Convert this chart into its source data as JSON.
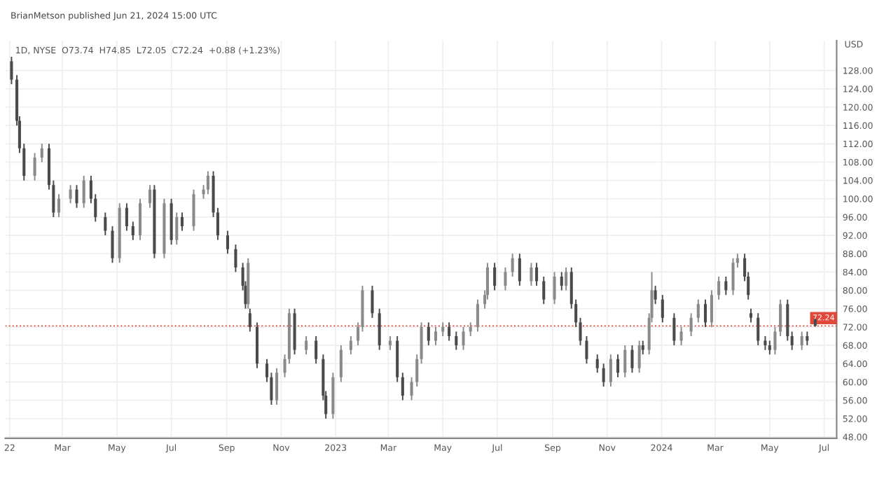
{
  "chart_data": {
    "type": "candlestick",
    "title": "BrianMetson published Jun 21, 2024 15:00 UTC",
    "subtitle": "1D, NYSE  O73.74  H74.85  L72.05  C72.24  +0.88 (+1.23%)",
    "ylabel": "USD",
    "x": [
      "2022-01-03",
      "2022-01-09",
      "2022-01-12",
      "2022-01-17",
      "2022-01-29",
      "2022-02-06",
      "2022-02-14",
      "2022-02-19",
      "2022-02-25",
      "2022-03-10",
      "2022-03-17",
      "2022-03-25",
      "2022-04-02",
      "2022-04-07",
      "2022-04-18",
      "2022-04-26",
      "2022-05-04",
      "2022-05-12",
      "2022-05-19",
      "2022-05-27",
      "2022-06-07",
      "2022-06-12",
      "2022-06-23",
      "2022-07-01",
      "2022-07-07",
      "2022-07-13",
      "2022-07-26",
      "2022-08-06",
      "2022-08-11",
      "2022-08-17",
      "2022-08-22",
      "2022-09-02",
      "2022-09-11",
      "2022-09-19",
      "2022-09-22",
      "2022-09-25",
      "2022-09-27",
      "2022-10-05",
      "2022-10-16",
      "2022-10-21",
      "2022-10-27",
      "2022-11-05",
      "2022-11-10",
      "2022-11-16",
      "2022-11-29",
      "2022-12-10",
      "2022-12-18",
      "2022-12-21",
      "2022-12-29",
      "2023-01-07",
      "2023-01-18",
      "2023-01-26",
      "2023-01-31",
      "2023-02-11",
      "2023-02-19",
      "2023-03-03",
      "2023-03-11",
      "2023-03-17",
      "2023-03-27",
      "2023-04-02",
      "2023-04-07",
      "2023-04-15",
      "2023-04-23",
      "2023-05-01",
      "2023-05-08",
      "2023-05-16",
      "2023-05-24",
      "2023-06-01",
      "2023-06-09",
      "2023-06-17",
      "2023-06-20",
      "2023-06-28",
      "2023-07-10",
      "2023-07-18",
      "2023-07-26",
      "2023-08-08",
      "2023-08-14",
      "2023-08-22",
      "2023-09-03",
      "2023-09-11",
      "2023-09-16",
      "2023-09-22",
      "2023-09-27",
      "2023-10-02",
      "2023-10-09",
      "2023-10-21",
      "2023-10-28",
      "2023-11-05",
      "2023-11-13",
      "2023-11-21",
      "2023-11-29",
      "2023-12-07",
      "2023-12-11",
      "2023-12-18",
      "2023-12-21",
      "2023-12-25",
      "2024-01-02",
      "2024-01-15",
      "2024-01-23",
      "2024-02-03",
      "2024-02-11",
      "2024-02-19",
      "2024-02-26",
      "2024-03-05",
      "2024-03-13",
      "2024-03-21",
      "2024-03-26",
      "2024-04-03",
      "2024-04-07",
      "2024-04-10",
      "2024-04-18",
      "2024-04-26",
      "2024-05-01",
      "2024-05-07",
      "2024-05-13",
      "2024-05-21",
      "2024-05-26",
      "2024-06-06",
      "2024-06-12",
      "2024-06-21"
    ],
    "ohlc": [
      [
        130,
        131,
        125,
        126
      ],
      [
        126,
        127,
        116,
        117
      ],
      [
        117,
        118,
        110,
        111
      ],
      [
        111,
        112,
        104,
        105
      ],
      [
        105,
        110,
        104,
        109
      ],
      [
        109,
        112,
        108,
        111
      ],
      [
        111,
        112,
        102,
        103
      ],
      [
        103,
        104,
        96,
        97
      ],
      [
        97,
        101,
        96,
        100
      ],
      [
        100,
        103,
        99,
        102
      ],
      [
        102,
        103,
        98,
        99
      ],
      [
        99,
        105,
        98,
        104
      ],
      [
        104,
        105,
        99,
        100
      ],
      [
        100,
        101,
        95,
        96
      ],
      [
        96,
        97,
        92,
        93
      ],
      [
        93,
        94,
        86,
        87
      ],
      [
        87,
        99,
        86,
        98
      ],
      [
        98,
        99,
        93,
        94
      ],
      [
        94,
        95,
        91,
        92
      ],
      [
        92,
        100,
        91,
        99
      ],
      [
        99,
        103,
        98,
        102
      ],
      [
        102,
        103,
        87,
        88
      ],
      [
        88,
        100,
        87,
        99
      ],
      [
        99,
        100,
        90,
        91
      ],
      [
        91,
        97,
        90,
        96
      ],
      [
        96,
        97,
        93,
        94
      ],
      [
        94,
        102,
        93,
        101
      ],
      [
        101,
        103,
        100,
        102
      ],
      [
        102,
        106,
        101,
        105
      ],
      [
        105,
        106,
        96,
        97
      ],
      [
        97,
        98,
        91,
        92
      ],
      [
        92,
        93,
        88,
        89
      ],
      [
        89,
        90,
        84,
        85
      ],
      [
        85,
        86,
        80,
        81
      ],
      [
        81,
        82,
        76,
        77
      ],
      [
        77,
        87,
        76,
        86
      ],
      [
        75,
        76,
        71,
        72
      ],
      [
        72,
        73,
        63,
        64
      ],
      [
        64,
        65,
        60,
        61
      ],
      [
        61,
        62,
        55,
        56
      ],
      [
        56,
        63,
        55,
        62
      ],
      [
        62,
        66,
        61,
        65
      ],
      [
        65,
        76,
        64,
        75
      ],
      [
        75,
        76,
        66,
        67
      ],
      [
        67,
        70,
        66,
        69
      ],
      [
        69,
        70,
        64,
        65
      ],
      [
        65,
        66,
        56,
        57
      ],
      [
        57,
        58,
        52,
        53
      ],
      [
        53,
        62,
        52,
        61
      ],
      [
        61,
        68,
        60,
        67
      ],
      [
        67,
        70,
        66,
        69
      ],
      [
        69,
        73,
        68,
        72
      ],
      [
        72,
        81,
        71,
        80
      ],
      [
        80,
        81,
        74,
        75
      ],
      [
        75,
        76,
        67,
        68
      ],
      [
        68,
        70,
        67,
        69
      ],
      [
        69,
        70,
        60,
        61
      ],
      [
        61,
        62,
        56,
        57
      ],
      [
        57,
        61,
        56,
        60
      ],
      [
        60,
        66,
        59,
        65
      ],
      [
        65,
        73,
        64,
        72
      ],
      [
        72,
        73,
        68,
        69
      ],
      [
        69,
        72,
        68,
        71
      ],
      [
        71,
        73,
        70,
        72
      ],
      [
        72,
        73,
        69,
        70
      ],
      [
        70,
        71,
        67,
        68
      ],
      [
        68,
        72,
        67,
        71
      ],
      [
        71,
        73,
        70,
        72
      ],
      [
        72,
        78,
        71,
        77
      ],
      [
        77,
        80,
        76,
        79
      ],
      [
        79,
        86,
        78,
        85
      ],
      [
        85,
        86,
        80,
        81
      ],
      [
        81,
        85,
        80,
        84
      ],
      [
        84,
        88,
        83,
        87
      ],
      [
        87,
        88,
        81,
        82
      ],
      [
        82,
        86,
        81,
        85
      ],
      [
        85,
        86,
        81,
        82
      ],
      [
        82,
        83,
        77,
        78
      ],
      [
        78,
        84,
        77,
        83
      ],
      [
        83,
        84,
        80,
        81
      ],
      [
        81,
        85,
        80,
        84
      ],
      [
        84,
        85,
        76,
        77
      ],
      [
        77,
        78,
        72,
        73
      ],
      [
        73,
        74,
        68,
        69
      ],
      [
        69,
        70,
        64,
        65
      ],
      [
        65,
        66,
        62,
        63
      ],
      [
        63,
        64,
        59,
        60
      ],
      [
        60,
        66,
        59,
        65
      ],
      [
        65,
        66,
        61,
        62
      ],
      [
        62,
        68,
        61,
        67
      ],
      [
        67,
        68,
        62,
        63
      ],
      [
        63,
        69,
        62,
        68
      ],
      [
        68,
        69,
        66,
        67
      ],
      [
        67,
        75,
        66,
        74
      ],
      [
        74,
        84,
        73,
        80
      ],
      [
        80,
        81,
        77,
        78
      ],
      [
        78,
        79,
        73,
        74
      ],
      [
        74,
        75,
        68,
        69
      ],
      [
        69,
        72,
        68,
        71
      ],
      [
        71,
        75,
        70,
        74
      ],
      [
        74,
        78,
        73,
        77
      ],
      [
        77,
        78,
        72,
        73
      ],
      [
        73,
        80,
        72,
        79
      ],
      [
        79,
        83,
        78,
        82
      ],
      [
        82,
        83,
        79,
        80
      ],
      [
        80,
        87,
        79,
        86
      ],
      [
        86,
        88,
        85,
        87
      ],
      [
        87,
        88,
        82,
        83
      ],
      [
        83,
        84,
        78,
        79
      ],
      [
        75,
        76,
        73,
        74
      ],
      [
        74,
        75,
        68,
        69
      ],
      [
        69,
        70,
        67,
        68
      ],
      [
        68,
        69,
        66,
        67
      ],
      [
        67,
        72,
        66,
        71
      ],
      [
        71,
        78,
        70,
        77
      ],
      [
        77,
        78,
        69,
        70
      ],
      [
        70,
        71,
        67,
        68
      ],
      [
        68,
        71,
        67,
        70
      ],
      [
        70,
        71,
        68,
        69
      ],
      [
        73.74,
        74.85,
        72.05,
        72.24
      ]
    ],
    "xlim": [
      "2021-12-27",
      "2024-07-15"
    ],
    "xticks": [
      {
        "value": "2022-01-01",
        "label": "22"
      },
      {
        "value": "2022-03-01",
        "label": "Mar"
      },
      {
        "value": "2022-05-01",
        "label": "May"
      },
      {
        "value": "2022-07-01",
        "label": "Jul"
      },
      {
        "value": "2022-09-01",
        "label": "Sep"
      },
      {
        "value": "2022-11-01",
        "label": "Nov"
      },
      {
        "value": "2023-01-01",
        "label": "2023"
      },
      {
        "value": "2023-03-01",
        "label": "Mar"
      },
      {
        "value": "2023-05-01",
        "label": "May"
      },
      {
        "value": "2023-07-01",
        "label": "Jul"
      },
      {
        "value": "2023-09-01",
        "label": "Sep"
      },
      {
        "value": "2023-11-01",
        "label": "Nov"
      },
      {
        "value": "2024-01-01",
        "label": "2024"
      },
      {
        "value": "2024-03-01",
        "label": "Mar"
      },
      {
        "value": "2024-05-01",
        "label": "May"
      },
      {
        "value": "2024-07-01",
        "label": "Jul"
      }
    ],
    "ylim": [
      47.7,
      134.5
    ],
    "yticks": [
      {
        "value": 48,
        "label": "48.00"
      },
      {
        "value": 52,
        "label": "52.00"
      },
      {
        "value": 56,
        "label": "56.00"
      },
      {
        "value": 60,
        "label": "60.00"
      },
      {
        "value": 64,
        "label": "64.00"
      },
      {
        "value": 68,
        "label": "68.00"
      },
      {
        "value": 72,
        "label": "72.00"
      },
      {
        "value": 76,
        "label": "76.00"
      },
      {
        "value": 80,
        "label": "80.00"
      },
      {
        "value": 84,
        "label": "84.00"
      },
      {
        "value": 88,
        "label": "88.00"
      },
      {
        "value": 92,
        "label": "92.00"
      },
      {
        "value": 96,
        "label": "96.00"
      },
      {
        "value": 100,
        "label": "100.00"
      },
      {
        "value": 104,
        "label": "104.00"
      },
      {
        "value": 108,
        "label": "108.00"
      },
      {
        "value": 112,
        "label": "112.00"
      },
      {
        "value": 116,
        "label": "116.00"
      },
      {
        "value": 120,
        "label": "120.00"
      },
      {
        "value": 124,
        "label": "124.00"
      },
      {
        "value": 128,
        "label": "128.00"
      }
    ],
    "ref_lines": [
      {
        "axis": "y",
        "value": 72.24,
        "label": "72.24",
        "color": "#e0483a",
        "line_style": "dotted"
      }
    ],
    "grid": true,
    "legend": false
  }
}
